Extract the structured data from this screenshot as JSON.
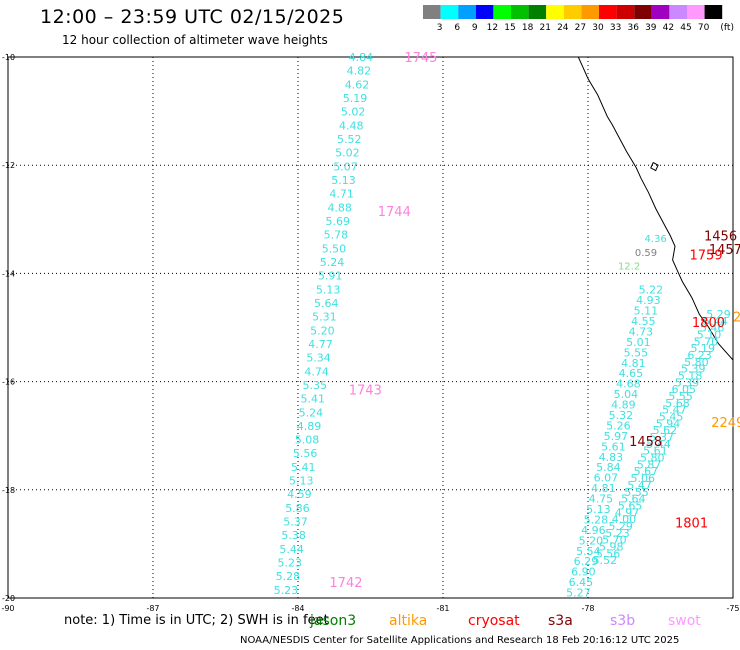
{
  "header": {
    "title": "12:00 – 23:59 UTC 02/15/2025",
    "subtitle": "12 hour collection of altimeter wave heights"
  },
  "colorbar": {
    "unit": "(ft)",
    "bins": [
      {
        "label": "3",
        "color": "#808080"
      },
      {
        "label": "6",
        "color": "#00ffff"
      },
      {
        "label": "9",
        "color": "#00a0ff"
      },
      {
        "label": "12",
        "color": "#0000ff"
      },
      {
        "label": "15",
        "color": "#00ff00"
      },
      {
        "label": "18",
        "color": "#00c000"
      },
      {
        "label": "21",
        "color": "#008000"
      },
      {
        "label": "24",
        "color": "#ffff00"
      },
      {
        "label": "27",
        "color": "#ffcc00"
      },
      {
        "label": "30",
        "color": "#ff9900"
      },
      {
        "label": "33",
        "color": "#ff0000"
      },
      {
        "label": "36",
        "color": "#cc0000"
      },
      {
        "label": "39",
        "color": "#800000"
      },
      {
        "label": "42",
        "color": "#a000c0"
      },
      {
        "label": "45",
        "color": "#cc88ff"
      },
      {
        "label": "70",
        "color": "#ff99ff"
      },
      {
        "label": "",
        "color": "#000000"
      }
    ]
  },
  "map": {
    "lon_ticks": [
      "-90",
      "-87",
      "-84",
      "-81",
      "-78",
      "-75"
    ],
    "lat_ticks": [
      "-10",
      "-12",
      "-14",
      "-16",
      "-18",
      "-20"
    ],
    "lon_range": [
      -90,
      -75
    ],
    "lat_range": [
      -20,
      -10
    ],
    "coastline_color": "#000000",
    "track1": {
      "color": "#40e0e0",
      "values": [
        "4.84",
        "4.82",
        "4.62",
        "5.19",
        "5.02",
        "4.48",
        "5.52",
        "5.02",
        "5.07",
        "5.13",
        "4.71",
        "4.88",
        "5.69",
        "5.78",
        "5.50",
        "5.24",
        "5.91",
        "5.13",
        "5.64",
        "5.31",
        "5.20",
        "4.77",
        "5.34",
        "4.74",
        "5.35",
        "5.41",
        "5.24",
        "4.89",
        "5.08",
        "5.56",
        "5.41",
        "5.13",
        "4.59",
        "5.86",
        "5.37",
        "5.38",
        "5.44",
        "5.23",
        "5.28",
        "5.23"
      ]
    },
    "track1_times": [
      {
        "label": "1745",
        "color": "#ff80e0"
      },
      {
        "label": "1744",
        "color": "#ff80e0"
      },
      {
        "label": "1743",
        "color": "#ff80e0"
      },
      {
        "label": "1742",
        "color": "#ff80e0"
      }
    ],
    "track2": {
      "color": "#40e0e0",
      "values": [
        "5.29",
        "5.44",
        "5.46",
        "5.10",
        "5.70",
        "5.19",
        "6.23",
        "5.80",
        "5.39",
        "5.18",
        "5.39",
        "6.05",
        "5.55",
        "5.68",
        "5.47",
        "5.45",
        "5.94",
        "5.62",
        "5.37",
        "5.44",
        "5.61",
        "5.80",
        "5.87",
        "5.67",
        "5.06",
        "5.47",
        "5.55",
        "5.64",
        "5.65",
        "4.97",
        "4.00",
        "5.29",
        "5.23",
        "5.70",
        "5.98",
        "5.56",
        "5.52"
      ]
    },
    "track3": {
      "color": "#40e0e0",
      "values": [
        "5.22",
        "4.93",
        "5.11",
        "4.55",
        "4.73",
        "5.01",
        "5.55",
        "4.81",
        "4.65",
        "4.68",
        "5.04",
        "4.89",
        "5.32",
        "5.26",
        "5.97",
        "5.61",
        "4.83",
        "5.84",
        "6.07",
        "4.81",
        "4.75",
        "5.13",
        "5.28",
        "4.96",
        "5.20",
        "5.54",
        "6.29",
        "6.90",
        "6.45",
        "5.27"
      ]
    },
    "track_times": [
      {
        "label": "1456",
        "color": "#800000"
      },
      {
        "label": "1457",
        "color": "#800000"
      },
      {
        "label": "1759",
        "color": "#ff0000"
      },
      {
        "label": "1800",
        "color": "#ff0000"
      },
      {
        "label": "1458",
        "color": "#800000"
      },
      {
        "label": "1801",
        "color": "#ff0000"
      },
      {
        "label": "2",
        "color": "#ff9900"
      },
      {
        "label": "2249",
        "color": "#ff9900"
      }
    ],
    "coastal_values": [
      {
        "label": "4.36",
        "color": "#40e0e0"
      },
      {
        "label": "0.59",
        "color": "#808080"
      },
      {
        "label": "12.2",
        "color": "#80e080"
      }
    ]
  },
  "footer": {
    "note": "note:  1) Time is in UTC; 2) SWH is in feet",
    "satellites": [
      {
        "label": "jason3",
        "color": "#008000"
      },
      {
        "label": "altika",
        "color": "#ff9900"
      },
      {
        "label": "cryosat",
        "color": "#ff0000"
      },
      {
        "label": "s3a",
        "color": "#800000"
      },
      {
        "label": "s3b",
        "color": "#cc88ff"
      },
      {
        "label": "swot",
        "color": "#ff99ff"
      }
    ],
    "credit": "NOAA/NESDIS Center for Satellite Applications and Research     18 Feb 20:16:12 UTC 2025"
  }
}
